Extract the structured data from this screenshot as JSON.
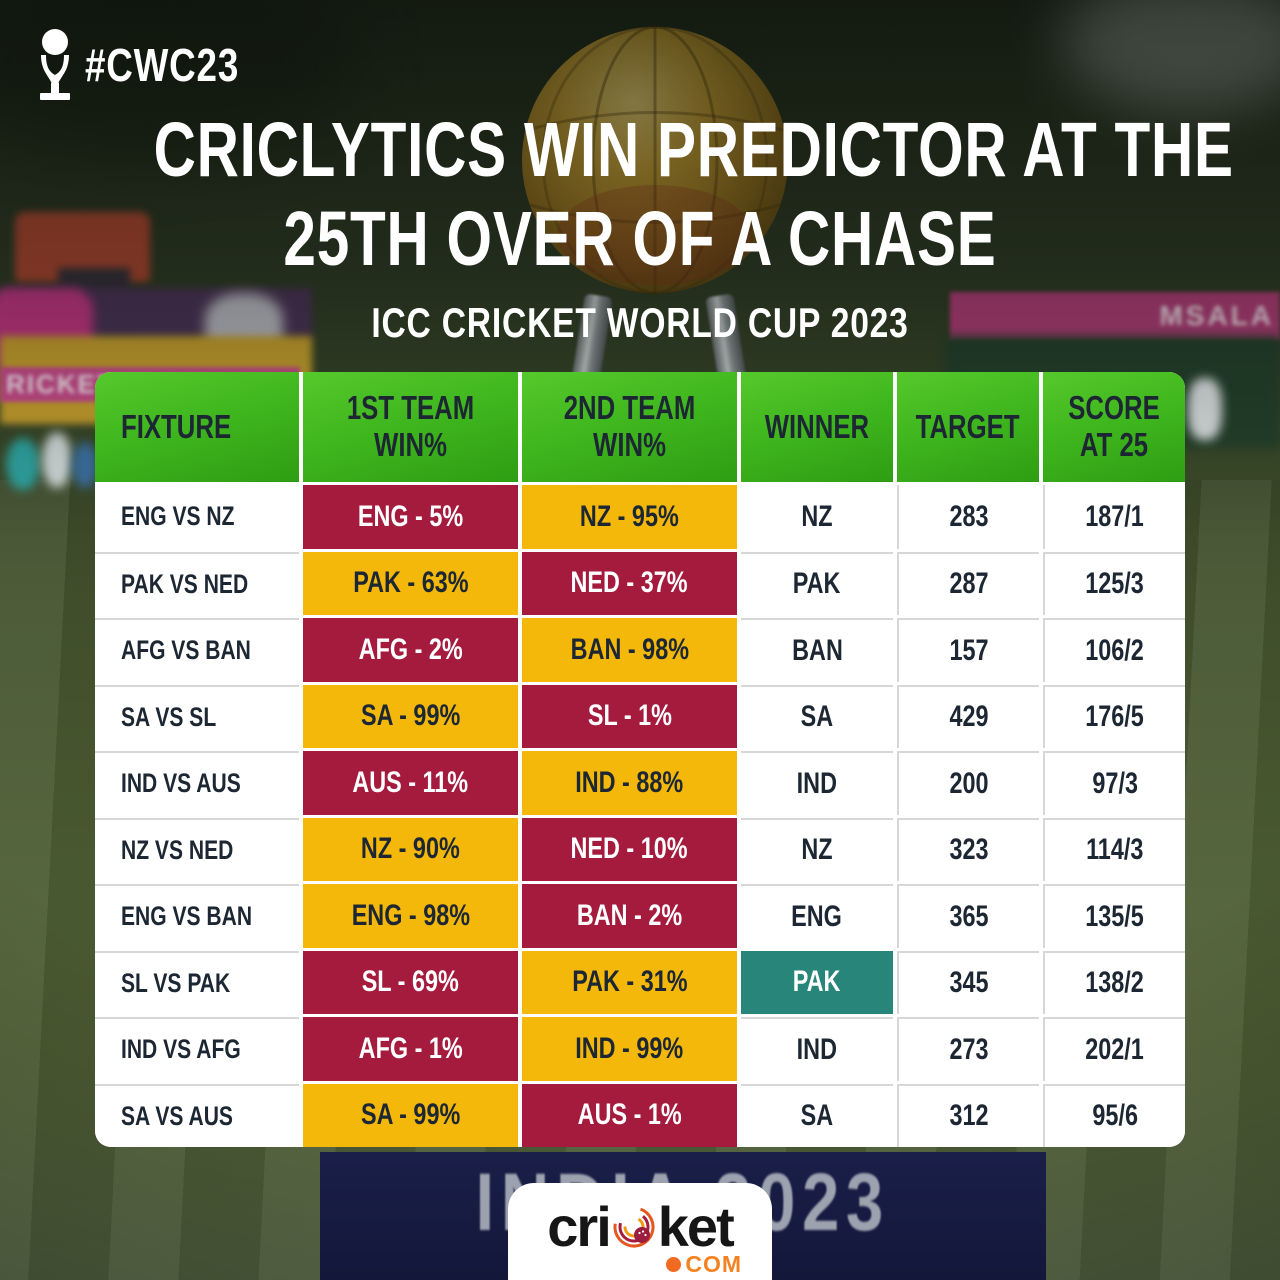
{
  "badge": {
    "hashtag": "#CWC23"
  },
  "title": {
    "line1": "CRICLYTICS WIN PREDICTOR AT THE",
    "line2": "25TH OVER OF A CHASE"
  },
  "subtitle": "ICC CRICKET WORLD CUP 2023",
  "chart_data": {
    "type": "table",
    "title": "CRICLYTICS WIN PREDICTOR AT THE 25TH OVER OF A CHASE",
    "subtitle": "ICC CRICKET WORLD CUP 2023",
    "columns": [
      "FIXTURE",
      "1ST TEAM WIN%",
      "2ND TEAM WIN%",
      "WINNER",
      "TARGET",
      "SCORE AT 25"
    ],
    "rows": [
      {
        "fixture": "ENG VS NZ",
        "team1": "ENG - 5%",
        "team1_color": "crimson",
        "team2": "NZ - 95%",
        "team2_color": "gold",
        "winner": "NZ",
        "upset": false,
        "target": "283",
        "score": "187/1"
      },
      {
        "fixture": "PAK VS NED",
        "team1": "PAK - 63%",
        "team1_color": "gold",
        "team2": "NED - 37%",
        "team2_color": "crimson",
        "winner": "PAK",
        "upset": false,
        "target": "287",
        "score": "125/3"
      },
      {
        "fixture": "AFG VS BAN",
        "team1": "AFG - 2%",
        "team1_color": "crimson",
        "team2": "BAN - 98%",
        "team2_color": "gold",
        "winner": "BAN",
        "upset": false,
        "target": "157",
        "score": "106/2"
      },
      {
        "fixture": "SA VS SL",
        "team1": "SA - 99%",
        "team1_color": "gold",
        "team2": "SL - 1%",
        "team2_color": "crimson",
        "winner": "SA",
        "upset": false,
        "target": "429",
        "score": "176/5"
      },
      {
        "fixture": "IND VS AUS",
        "team1": "AUS - 11%",
        "team1_color": "crimson",
        "team2": "IND - 88%",
        "team2_color": "gold",
        "winner": "IND",
        "upset": false,
        "target": "200",
        "score": "97/3"
      },
      {
        "fixture": "NZ VS NED",
        "team1": "NZ - 90%",
        "team1_color": "gold",
        "team2": "NED - 10%",
        "team2_color": "crimson",
        "winner": "NZ",
        "upset": false,
        "target": "323",
        "score": "114/3"
      },
      {
        "fixture": "ENG VS BAN",
        "team1": "ENG - 98%",
        "team1_color": "gold",
        "team2": "BAN - 2%",
        "team2_color": "crimson",
        "winner": "ENG",
        "upset": false,
        "target": "365",
        "score": "135/5"
      },
      {
        "fixture": "SL VS PAK",
        "team1": "SL - 69%",
        "team1_color": "crimson",
        "team2": "PAK - 31%",
        "team2_color": "gold",
        "winner": "PAK",
        "upset": true,
        "target": "345",
        "score": "138/2"
      },
      {
        "fixture": "IND VS AFG",
        "team1": "AFG - 1%",
        "team1_color": "crimson",
        "team2": "IND - 99%",
        "team2_color": "gold",
        "winner": "IND",
        "upset": false,
        "target": "273",
        "score": "202/1"
      },
      {
        "fixture": "SA VS AUS",
        "team1": "SA - 99%",
        "team1_color": "gold",
        "team2": "AUS - 1%",
        "team2_color": "crimson",
        "winner": "SA",
        "upset": false,
        "target": "312",
        "score": "95/6"
      }
    ],
    "legend_colors": {
      "high_win_pct": "#F4B80A",
      "low_win_pct": "#A41B3E",
      "upset_winner": "#27857A",
      "header_green": "#3CB31C",
      "text_navy": "#1D2733"
    }
  },
  "background": {
    "banner_text": "INDIA 2023",
    "left_banner_text": "RICKET W",
    "right_banner_text": "MSALA"
  },
  "logo": {
    "word_pre": "cri",
    "word_post": "ket",
    "tld": "COM"
  }
}
